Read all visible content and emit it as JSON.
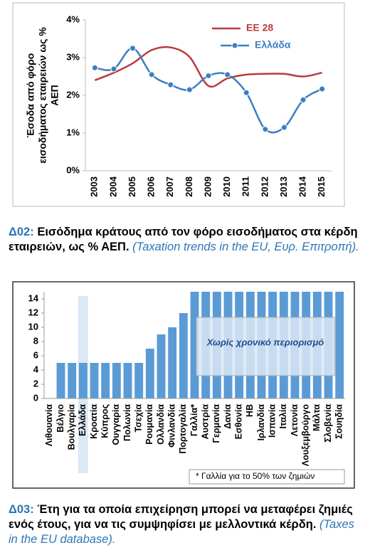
{
  "chart_data": [
    {
      "type": "line",
      "ylabel_lines": [
        "Έσοδα από φόρο",
        "εισοδήματος εταιρειών ως %",
        "ΑΕΠ"
      ],
      "x": [
        "2003",
        "2004",
        "2005",
        "2006",
        "2007",
        "2008",
        "2009",
        "2010",
        "2011",
        "2012",
        "2013",
        "2014",
        "2015"
      ],
      "series": [
        {
          "name": "EE 28",
          "color": "#b83c3c",
          "marker": false,
          "values": [
            2.4,
            2.6,
            2.85,
            3.2,
            3.27,
            3.02,
            2.25,
            2.45,
            2.55,
            2.57,
            2.57,
            2.5,
            2.6
          ]
        },
        {
          "name": "Ελλάδα",
          "color": "#3a7fc1",
          "marker": true,
          "values": [
            2.73,
            2.7,
            3.25,
            2.55,
            2.28,
            2.15,
            2.52,
            2.55,
            2.07,
            1.1,
            1.15,
            1.88,
            2.17
          ]
        }
      ],
      "ylim": [
        0,
        4
      ],
      "yticks": [
        {
          "value": 0,
          "label": "0%"
        },
        {
          "value": 1,
          "label": "1%"
        },
        {
          "value": 2,
          "label": "2%"
        },
        {
          "value": 3,
          "label": "3%"
        },
        {
          "value": 4,
          "label": "4%"
        }
      ],
      "grid": false,
      "caption": {
        "label": "Δ02:",
        "text": "Εισόδημα κράτους από τον φόρο εισοδήματος στα κέρδη εταιρειών, ως % ΑΕΠ.",
        "source": "(Taxation trends in the EU, Ευρ. Επιτροπή)."
      }
    },
    {
      "type": "bar",
      "categories": [
        "Λιθουανία",
        "Βέλγιο",
        "Βουλγαρία",
        "Ελλάδα",
        "Κροατία",
        "Κύπρος",
        "Ουγγαρία",
        "Πολωνία",
        "Τσεχία",
        "Ρουμανία",
        "Ολλανδία",
        "Φινλανδία",
        "Πορτογαλία",
        "Γαλλία*",
        "Αυστρία",
        "Γερμανία",
        "Δανία",
        "Εσθονία",
        "ΗΒ",
        "Ιρλανδία",
        "Ισπανία",
        "Ιταλία",
        "Λετονία",
        "Λουξεμβούργο",
        "Μάλτα",
        "Σλοβενία",
        "Σουηδία"
      ],
      "values": [
        0,
        5,
        5,
        5,
        5,
        5,
        5,
        5,
        5,
        7,
        9,
        10,
        12,
        15,
        15,
        15,
        15,
        15,
        15,
        15,
        15,
        15,
        15,
        15,
        15,
        15,
        15
      ],
      "color": "#5b9bd5",
      "highlight": "Ελλάδα",
      "ylim": [
        0,
        15
      ],
      "yticks": [
        0,
        2,
        4,
        6,
        8,
        10,
        12,
        14
      ],
      "grid": false,
      "annotation": "Χωρίς χρονικό περιορισμό",
      "footnote": "* Γαλλία για το 50% των ζημιών",
      "caption": {
        "label": "Δ03:",
        "text": "Έτη για τα οποία επιχείρηση μπορεί να μεταφέρει ζημιές ενός έτους, για να τις συμψηφίσει με μελλοντικά κέρδη.",
        "source": "(Taxes in the EU database)."
      }
    }
  ]
}
